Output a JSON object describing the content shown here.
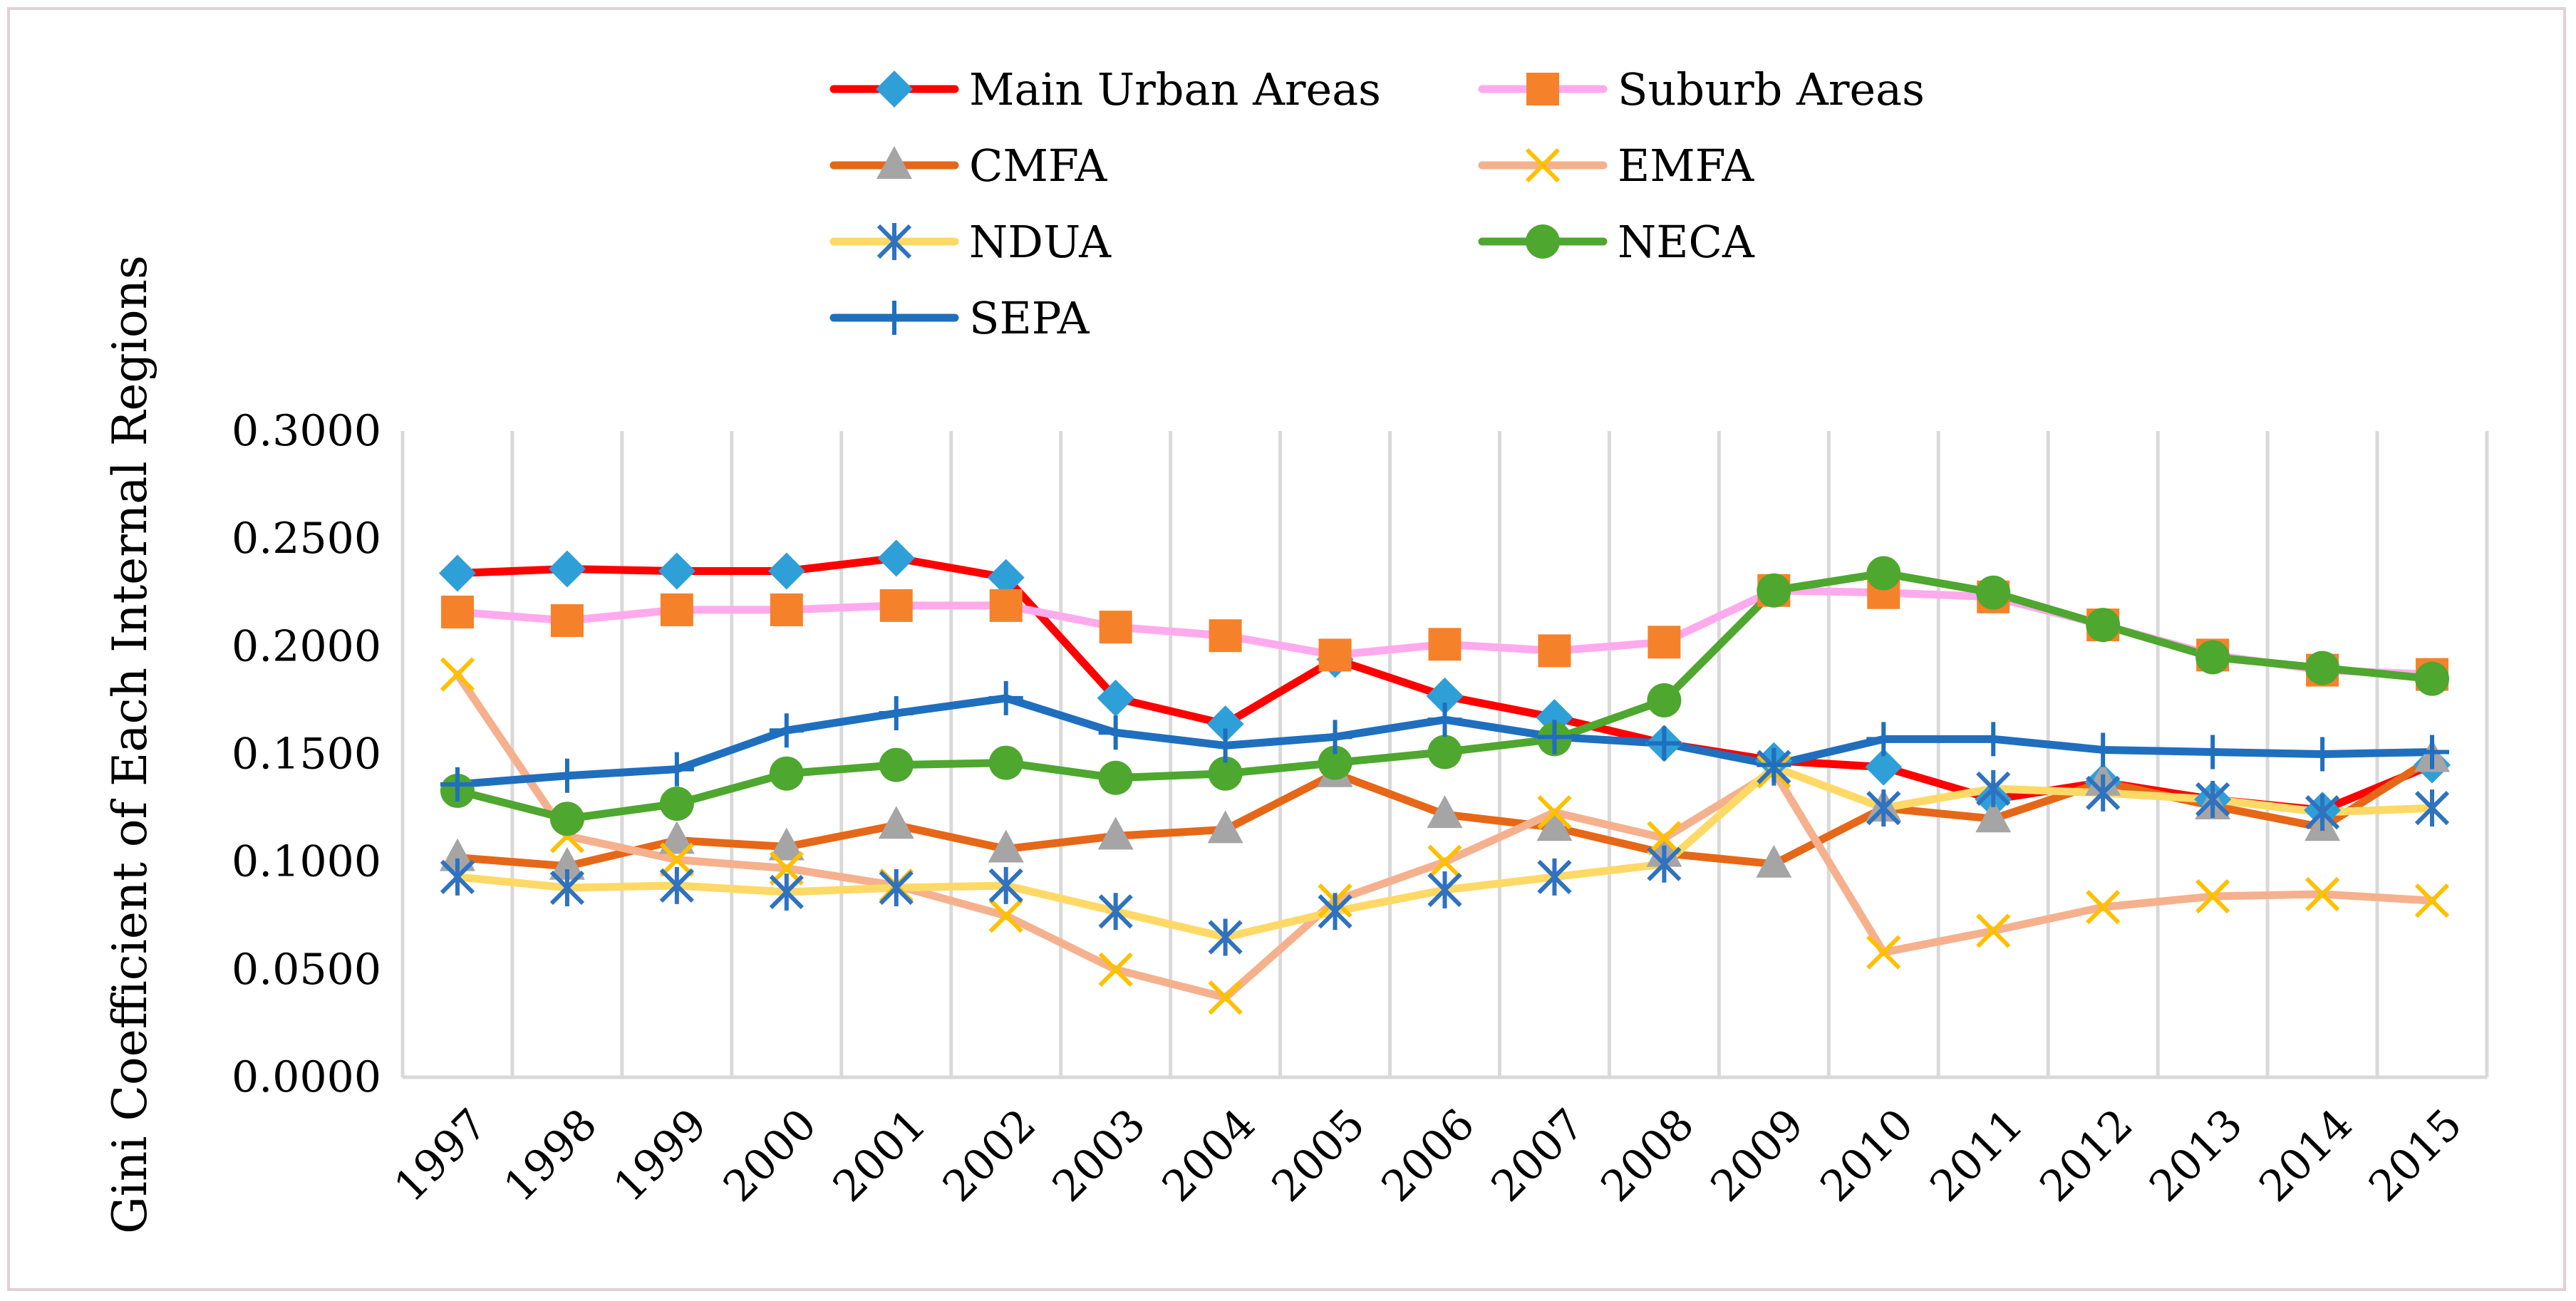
{
  "chart_data": {
    "type": "line",
    "title": "",
    "xlabel": "",
    "ylabel": "Gini Coefficient of Each Internal Regions",
    "ylim": [
      0,
      0.3
    ],
    "y_ticks": [
      "0.0000",
      "0.0500",
      "0.1000",
      "0.1500",
      "0.2000",
      "0.2500",
      "0.3000"
    ],
    "categories": [
      "1997",
      "1998",
      "1999",
      "2000",
      "2001",
      "2002",
      "2003",
      "2004",
      "2005",
      "2006",
      "2007",
      "2008",
      "2009",
      "2010",
      "2011",
      "2012",
      "2013",
      "2014",
      "2015"
    ],
    "grid": "vertical",
    "legend_position": "top",
    "series": [
      {
        "name": "Main Urban Areas",
        "color": "#ff0000",
        "marker": "diamond",
        "marker_color": "#2f9fd8",
        "values": [
          0.234,
          0.236,
          0.235,
          0.235,
          0.241,
          0.232,
          0.176,
          0.164,
          0.194,
          0.177,
          0.167,
          0.155,
          0.147,
          0.144,
          0.129,
          0.137,
          0.129,
          0.124,
          0.145
        ]
      },
      {
        "name": "Suburb Areas",
        "color": "#ffaaee",
        "marker": "square",
        "marker_color": "#f5822a",
        "values": [
          0.216,
          0.212,
          0.217,
          0.217,
          0.219,
          0.219,
          0.209,
          0.205,
          0.196,
          0.201,
          0.198,
          0.202,
          0.226,
          0.225,
          0.223,
          0.21,
          0.196,
          0.189,
          0.187
        ]
      },
      {
        "name": "CMFA",
        "color": "#e66717",
        "marker": "triangle",
        "marker_color": "#a5a5a5",
        "values": [
          0.102,
          0.098,
          0.11,
          0.107,
          0.117,
          0.106,
          0.112,
          0.115,
          0.141,
          0.122,
          0.116,
          0.104,
          0.099,
          0.125,
          0.12,
          0.137,
          0.126,
          0.116,
          0.148
        ]
      },
      {
        "name": "EMFA",
        "color": "#f5b18d",
        "marker": "x",
        "marker_color": "#ffc000",
        "values": [
          0.187,
          0.112,
          0.101,
          0.097,
          0.089,
          0.075,
          0.05,
          0.037,
          0.082,
          0.1,
          0.123,
          0.111,
          0.142,
          0.058,
          0.068,
          0.079,
          0.084,
          0.085,
          0.082
        ]
      },
      {
        "name": "NDUA",
        "color": "#ffd966",
        "marker": "star",
        "marker_color": "#2f72c0",
        "values": [
          0.093,
          0.088,
          0.089,
          0.086,
          0.088,
          0.089,
          0.077,
          0.065,
          0.077,
          0.087,
          0.093,
          0.099,
          0.144,
          0.125,
          0.134,
          0.132,
          0.129,
          0.123,
          0.125
        ]
      },
      {
        "name": "NECA",
        "color": "#4ea72e",
        "marker": "circle",
        "marker_color": "#4ea72e",
        "values": [
          0.133,
          0.12,
          0.127,
          0.141,
          0.145,
          0.146,
          0.139,
          0.141,
          0.146,
          0.151,
          0.157,
          0.175,
          0.226,
          0.234,
          0.225,
          0.21,
          0.195,
          0.19,
          0.185
        ]
      },
      {
        "name": "SEPA",
        "color": "#1f6fbe",
        "marker": "plus",
        "marker_color": "#1f6fbe",
        "values": [
          0.136,
          0.14,
          0.143,
          0.161,
          0.169,
          0.176,
          0.16,
          0.154,
          0.158,
          0.166,
          0.158,
          0.155,
          0.145,
          0.157,
          0.157,
          0.152,
          0.151,
          0.15,
          0.151
        ]
      }
    ]
  }
}
